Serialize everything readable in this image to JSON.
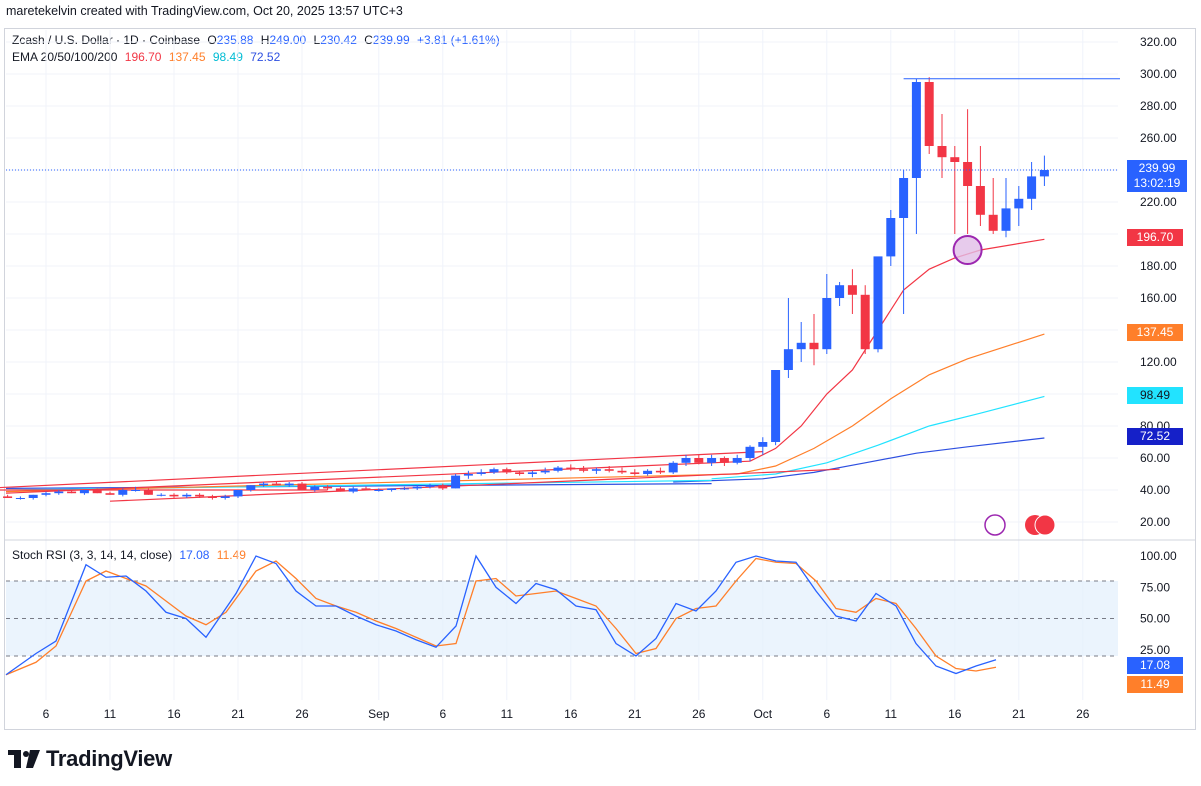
{
  "header": {
    "created_by": "maretekelvin created with TradingView.com, Oct 20, 2025 13:57 UTC+3"
  },
  "symbol": {
    "title": "Zcash / U.S. Dollar · 1D · Coinbase",
    "o_label": "O",
    "o": "235.88",
    "h_label": "H",
    "h": "249.00",
    "l_label": "L",
    "l": "230.42",
    "c_label": "C",
    "c": "239.99",
    "change": "+3.81 (+1.61%)"
  },
  "ema_legend": {
    "label": "EMA 20/50/100/200",
    "v20": "196.70",
    "v50": "137.45",
    "v100": "98.49",
    "v200": "72.52"
  },
  "rsi_legend": {
    "label": "Stoch RSI (3, 3, 14, 14, close)",
    "k": "17.08",
    "d": "11.49"
  },
  "price_badge": {
    "price": "239.99",
    "countdown": "13:02:19"
  },
  "ema_badges": [
    "196.70",
    "137.45",
    "98.49",
    "72.52"
  ],
  "rsi_badges": [
    "17.08",
    "11.49"
  ],
  "brand": "TradingView",
  "colors": {
    "up": "#2962ff",
    "down": "#f23645",
    "ema20": "#f23645",
    "ema50": "#ff7f2a",
    "ema100": "#22e3ff",
    "ema200": "#2d4fe0",
    "k": "#2962ff",
    "d": "#ff7f2a",
    "band": "#e3f0fc",
    "axis_text": "#131722"
  },
  "chart_data": {
    "type": "candlestick",
    "price_axis": {
      "ticks": [
        "320.00",
        "300.00",
        "280.00",
        "260.00",
        "240.00",
        "220.00",
        "200.00",
        "180.00",
        "160.00",
        "140.00",
        "120.00",
        "100.00",
        "80.00",
        "60.00",
        "40.00",
        "20.00"
      ]
    },
    "time_axis": {
      "ticks": [
        {
          "label": "6",
          "day": 6
        },
        {
          "label": "11",
          "day": 11
        },
        {
          "label": "16",
          "day": 16
        },
        {
          "label": "21",
          "day": 21
        },
        {
          "label": "26",
          "day": 26
        },
        {
          "label": "Sep",
          "day": 32
        },
        {
          "label": "6",
          "day": 37
        },
        {
          "label": "11",
          "day": 42
        },
        {
          "label": "16",
          "day": 47
        },
        {
          "label": "21",
          "day": 52
        },
        {
          "label": "26",
          "day": 57
        },
        {
          "label": "Oct",
          "day": 62
        },
        {
          "label": "6",
          "day": 67
        },
        {
          "label": "11",
          "day": 72
        },
        {
          "label": "16",
          "day": 77
        },
        {
          "label": "21",
          "day": 82
        },
        {
          "label": "26",
          "day": 87
        }
      ]
    },
    "candles_start_day": 1,
    "candles": [
      [
        36,
        37,
        35,
        36
      ],
      [
        36,
        37,
        35,
        36
      ],
      [
        36,
        37,
        35,
        35
      ],
      [
        35,
        36,
        34,
        35
      ],
      [
        35,
        37,
        34,
        37
      ],
      [
        37,
        39,
        36,
        38
      ],
      [
        38,
        40,
        37,
        39
      ],
      [
        39,
        40,
        38,
        38
      ],
      [
        38,
        40,
        37,
        40
      ],
      [
        40,
        41,
        38,
        38
      ],
      [
        38,
        39,
        37,
        37
      ],
      [
        37,
        41,
        36,
        40
      ],
      [
        40,
        42,
        39,
        40
      ],
      [
        40,
        41,
        37,
        37
      ],
      [
        37,
        38,
        36,
        37
      ],
      [
        37,
        38,
        35,
        36
      ],
      [
        36,
        38,
        35,
        37
      ],
      [
        37,
        38,
        35,
        36
      ],
      [
        36,
        37,
        34,
        35
      ],
      [
        35,
        37,
        34,
        36
      ],
      [
        36,
        40,
        35,
        40
      ],
      [
        40,
        43,
        39,
        43
      ],
      [
        43,
        45,
        42,
        44
      ],
      [
        44,
        45,
        43,
        43
      ],
      [
        43,
        45,
        42,
        44
      ],
      [
        44,
        45,
        40,
        40
      ],
      [
        40,
        43,
        39,
        42
      ],
      [
        42,
        43,
        40,
        41
      ],
      [
        41,
        42,
        39,
        39
      ],
      [
        39,
        42,
        38,
        41
      ],
      [
        41,
        42,
        40,
        40
      ],
      [
        40,
        41,
        39,
        40
      ],
      [
        40,
        41,
        39,
        41
      ],
      [
        41,
        42,
        40,
        41
      ],
      [
        41,
        43,
        40,
        42
      ],
      [
        42,
        44,
        41,
        43
      ],
      [
        43,
        44,
        40,
        41
      ],
      [
        41,
        50,
        41,
        49
      ],
      [
        49,
        52,
        47,
        50
      ],
      [
        50,
        53,
        49,
        51
      ],
      [
        51,
        54,
        50,
        53
      ],
      [
        53,
        54,
        50,
        51
      ],
      [
        51,
        52,
        49,
        50
      ],
      [
        50,
        52,
        48,
        51
      ],
      [
        51,
        54,
        50,
        52
      ],
      [
        52,
        55,
        51,
        54
      ],
      [
        54,
        56,
        52,
        53
      ],
      [
        53,
        55,
        51,
        52
      ],
      [
        52,
        54,
        50,
        53
      ],
      [
        53,
        55,
        51,
        52
      ],
      [
        52,
        54,
        50,
        51
      ],
      [
        51,
        53,
        49,
        50
      ],
      [
        50,
        53,
        49,
        52
      ],
      [
        52,
        54,
        50,
        51
      ],
      [
        51,
        58,
        50,
        57
      ],
      [
        57,
        62,
        55,
        60
      ],
      [
        60,
        62,
        56,
        57
      ],
      [
        57,
        62,
        55,
        60
      ],
      [
        60,
        61,
        55,
        57
      ],
      [
        57,
        62,
        56,
        60
      ],
      [
        60,
        68,
        58,
        67
      ],
      [
        67,
        73,
        62,
        70
      ],
      [
        70,
        115,
        68,
        115
      ],
      [
        115,
        160,
        110,
        128
      ],
      [
        128,
        145,
        120,
        132
      ],
      [
        132,
        150,
        118,
        128
      ],
      [
        128,
        175,
        125,
        160
      ],
      [
        160,
        170,
        155,
        168
      ],
      [
        168,
        178,
        150,
        162
      ],
      [
        162,
        168,
        125,
        128
      ],
      [
        128,
        185,
        126,
        186
      ],
      [
        186,
        215,
        180,
        210
      ],
      [
        210,
        240,
        150,
        235
      ],
      [
        235,
        297,
        200,
        295
      ],
      [
        295,
        298,
        250,
        255
      ],
      [
        255,
        275,
        235,
        248
      ],
      [
        248,
        255,
        200,
        245
      ],
      [
        245,
        278,
        200,
        230
      ],
      [
        230,
        255,
        205,
        212
      ],
      [
        212,
        235,
        200,
        202
      ],
      [
        202,
        235,
        198,
        216
      ],
      [
        216,
        230,
        205,
        222
      ],
      [
        222,
        245,
        215,
        236
      ],
      [
        236,
        249,
        230,
        240
      ]
    ],
    "ema": {
      "ema20": [
        [
          61,
          58
        ],
        [
          63,
          66
        ],
        [
          65,
          80
        ],
        [
          67,
          100
        ],
        [
          69,
          115
        ],
        [
          71,
          140
        ],
        [
          73,
          165
        ],
        [
          75,
          178
        ],
        [
          77,
          185
        ],
        [
          79,
          190
        ],
        [
          84,
          196.7
        ]
      ],
      "ema50": [
        [
          60,
          50
        ],
        [
          63,
          55
        ],
        [
          66,
          66
        ],
        [
          69,
          80
        ],
        [
          72,
          97
        ],
        [
          75,
          112
        ],
        [
          78,
          122
        ],
        [
          84,
          137.45
        ]
      ],
      "ema100": [
        [
          58,
          47
        ],
        [
          63,
          50
        ],
        [
          67,
          57
        ],
        [
          71,
          68
        ],
        [
          75,
          80
        ],
        [
          79,
          88
        ],
        [
          84,
          98.49
        ]
      ],
      "ema200": [
        [
          55,
          45
        ],
        [
          62,
          47
        ],
        [
          66,
          51
        ],
        [
          70,
          57
        ],
        [
          74,
          63
        ],
        [
          78,
          67
        ],
        [
          84,
          72.52
        ]
      ]
    },
    "trend_lines": [
      {
        "from": [
          1,
          41
        ],
        "to": [
          62,
          64
        ]
      },
      {
        "from": [
          11,
          33
        ],
        "to": [
          68,
          53
        ]
      },
      {
        "from": [
          1,
          40
        ],
        "to": [
          28,
          40
        ]
      }
    ],
    "resistance": {
      "from_day": 73,
      "to_day": 90,
      "price": 297
    },
    "marker": {
      "day": 78,
      "price": 190
    },
    "stoch_rsi": {
      "axis_ticks": [
        "100.00",
        "75.00",
        "50.00",
        "25.00"
      ],
      "bands": {
        "upper": 80,
        "lower": 20
      },
      "k": [
        [
          1,
          5
        ],
        [
          4,
          22
        ],
        [
          6,
          32
        ],
        [
          9,
          93
        ],
        [
          11,
          83
        ],
        [
          13,
          84
        ],
        [
          15,
          72
        ],
        [
          17,
          55
        ],
        [
          19,
          50
        ],
        [
          21,
          35
        ],
        [
          24,
          70
        ],
        [
          26,
          100
        ],
        [
          28,
          94
        ],
        [
          30,
          72
        ],
        [
          32,
          60
        ],
        [
          34,
          60
        ],
        [
          36,
          52
        ],
        [
          38,
          45
        ],
        [
          40,
          40
        ],
        [
          42,
          33
        ],
        [
          44,
          27
        ],
        [
          46,
          44
        ],
        [
          48,
          100
        ],
        [
          50,
          75
        ],
        [
          52,
          62
        ],
        [
          54,
          78
        ],
        [
          56,
          73
        ],
        [
          58,
          60
        ],
        [
          60,
          57
        ],
        [
          62,
          30
        ],
        [
          64,
          20
        ],
        [
          66,
          34
        ],
        [
          68,
          62
        ],
        [
          70,
          56
        ],
        [
          72,
          72
        ],
        [
          74,
          95
        ],
        [
          76,
          100
        ],
        [
          78,
          96
        ],
        [
          80,
          95
        ],
        [
          82,
          72
        ],
        [
          84,
          52
        ],
        [
          86,
          48
        ],
        [
          88,
          70
        ],
        [
          90,
          60
        ],
        [
          92,
          30
        ],
        [
          94,
          12
        ],
        [
          96,
          6
        ],
        [
          98,
          12
        ],
        [
          100,
          17
        ]
      ],
      "d": [
        [
          1,
          5
        ],
        [
          4,
          15
        ],
        [
          6,
          28
        ],
        [
          9,
          80
        ],
        [
          11,
          88
        ],
        [
          13,
          82
        ],
        [
          15,
          76
        ],
        [
          17,
          64
        ],
        [
          19,
          52
        ],
        [
          21,
          45
        ],
        [
          23,
          55
        ],
        [
          26,
          88
        ],
        [
          28,
          96
        ],
        [
          30,
          82
        ],
        [
          32,
          66
        ],
        [
          34,
          60
        ],
        [
          36,
          55
        ],
        [
          38,
          48
        ],
        [
          40,
          42
        ],
        [
          42,
          35
        ],
        [
          44,
          28
        ],
        [
          46,
          30
        ],
        [
          48,
          80
        ],
        [
          50,
          82
        ],
        [
          52,
          68
        ],
        [
          54,
          70
        ],
        [
          56,
          72
        ],
        [
          58,
          66
        ],
        [
          60,
          60
        ],
        [
          62,
          42
        ],
        [
          64,
          22
        ],
        [
          66,
          26
        ],
        [
          68,
          50
        ],
        [
          70,
          58
        ],
        [
          72,
          60
        ],
        [
          74,
          80
        ],
        [
          76,
          98
        ],
        [
          78,
          95
        ],
        [
          80,
          94
        ],
        [
          82,
          80
        ],
        [
          84,
          58
        ],
        [
          86,
          55
        ],
        [
          88,
          66
        ],
        [
          90,
          62
        ],
        [
          92,
          42
        ],
        [
          94,
          20
        ],
        [
          96,
          10
        ],
        [
          98,
          8
        ],
        [
          100,
          11
        ]
      ]
    }
  }
}
